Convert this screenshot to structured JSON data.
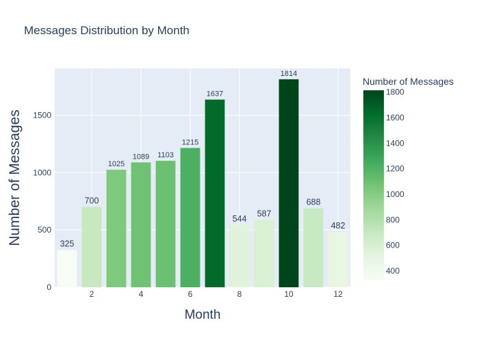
{
  "chart_data": {
    "type": "bar",
    "title": "Messages Distribution by Month",
    "xlabel": "Month",
    "ylabel": "Number of Messages",
    "x": [
      1,
      2,
      3,
      4,
      5,
      6,
      7,
      8,
      9,
      10,
      11,
      12
    ],
    "values": [
      325,
      700,
      1025,
      1089,
      1103,
      1215,
      1637,
      544,
      587,
      1814,
      688,
      482
    ],
    "xticks": [
      2,
      4,
      6,
      8,
      10,
      12
    ],
    "yticks": [
      0,
      500,
      1000,
      1500
    ],
    "ylim": [
      0,
      1909
    ],
    "grid": true,
    "plot_bg": "#e5ecf6",
    "colorscale": [
      "#f7fcf5",
      "#e5f5e0",
      "#c7e9c0",
      "#a1d99b",
      "#74c476",
      "#41ab5d",
      "#238b45",
      "#006d2c",
      "#00441b"
    ],
    "colorbar": {
      "title": "Number of Messages",
      "range": [
        325,
        1814
      ],
      "ticks": [
        400,
        600,
        800,
        1000,
        1200,
        1400,
        1600,
        1800
      ]
    }
  }
}
